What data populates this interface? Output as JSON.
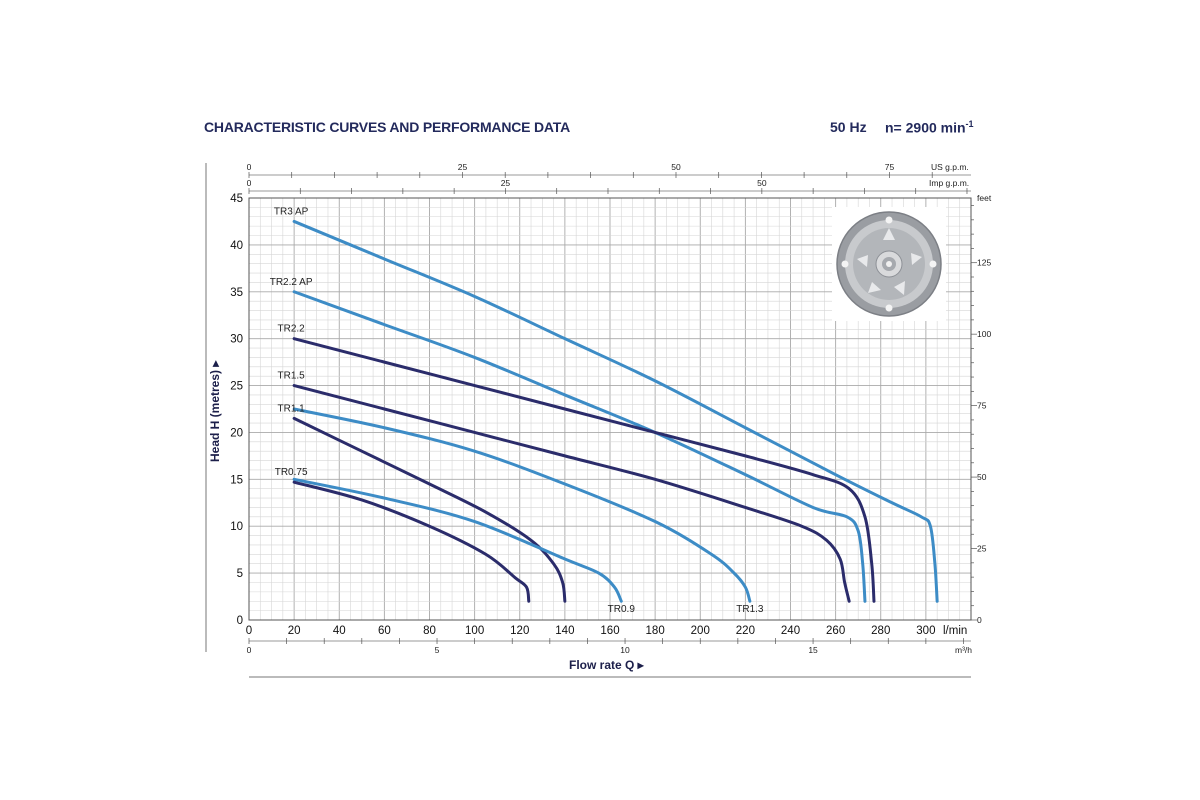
{
  "header": {
    "title": "CHARACTERISTIC CURVES AND PERFORMANCE DATA",
    "frequency": "50 Hz",
    "speed": "n= 2900 min",
    "speed_sup": "-1"
  },
  "colors": {
    "dark": "#2b2c6b",
    "light": "#3d8cc6",
    "grid": "#b9b9b9",
    "text": "#1c1f4a"
  },
  "chart_data": {
    "type": "line",
    "xlabel": "Flow rate Q ▸",
    "ylabel": "Head H (metres) ▸",
    "xlim": [
      0,
      320
    ],
    "ylim": [
      0,
      45
    ],
    "grid": true,
    "x_ticks": [
      "0",
      "20",
      "40",
      "60",
      "80",
      "100",
      "120",
      "140",
      "160",
      "180",
      "200",
      "220",
      "240",
      "260",
      "280",
      "300"
    ],
    "x_unit": "l/min",
    "y_ticks": [
      "0",
      "5",
      "10",
      "15",
      "20",
      "25",
      "30",
      "35",
      "40",
      "45"
    ],
    "top_axes": [
      {
        "unit": "US g.p.m.",
        "ticks": [
          "0",
          "25",
          "50",
          "75"
        ],
        "values": [
          0,
          25,
          50,
          75
        ]
      },
      {
        "unit": "Imp g.p.m.",
        "ticks": [
          "0",
          "25",
          "50"
        ],
        "values": [
          0,
          25,
          50
        ]
      }
    ],
    "bottom_axis_m3h": {
      "unit": "m³/h",
      "ticks": [
        "0",
        "5",
        "10",
        "15"
      ],
      "values": [
        0,
        5,
        10,
        15
      ]
    },
    "right_axis_feet": {
      "unit": "feet",
      "ticks": [
        "0",
        "25",
        "50",
        "75",
        "100",
        "125"
      ],
      "values": [
        0,
        25,
        50,
        75,
        100,
        125
      ]
    },
    "series": [
      {
        "name": "TR3 AP",
        "color": "light",
        "label_pos": "start",
        "x": [
          20,
          60,
          100,
          140,
          180,
          220,
          260,
          285,
          298,
          302,
          304,
          305
        ],
        "y": [
          42.5,
          38.5,
          34.5,
          30,
          25.5,
          20.5,
          15.5,
          12.5,
          11,
          10,
          6,
          2
        ]
      },
      {
        "name": "TR2.2 AP",
        "color": "light",
        "label_pos": "start",
        "x": [
          20,
          60,
          100,
          140,
          180,
          220,
          250,
          265,
          270,
          272,
          273
        ],
        "y": [
          35,
          31.5,
          28,
          24,
          20,
          15.5,
          12,
          11,
          9.5,
          6,
          2
        ]
      },
      {
        "name": "TR2.2",
        "color": "dark",
        "label_pos": "start",
        "x": [
          20,
          60,
          100,
          140,
          180,
          220,
          250,
          266,
          273,
          276,
          277
        ],
        "y": [
          30,
          27.5,
          25,
          22.5,
          20,
          17.5,
          15.5,
          14,
          11,
          6,
          2
        ]
      },
      {
        "name": "TR1.5",
        "color": "dark",
        "label_pos": "start",
        "x": [
          20,
          60,
          100,
          140,
          180,
          220,
          245,
          256,
          262,
          264,
          266
        ],
        "y": [
          25,
          22.5,
          20,
          17.5,
          15,
          12,
          10,
          8.5,
          6.5,
          4,
          2
        ]
      },
      {
        "name": "TR1.3",
        "color": "light",
        "label_pos": "end",
        "x": [
          20,
          60,
          100,
          140,
          180,
          205,
          215,
          220,
          222
        ],
        "y": [
          22.5,
          20.5,
          18,
          14.5,
          10.5,
          7,
          5,
          3.5,
          2
        ]
      },
      {
        "name": "TR1.1",
        "color": "dark",
        "label_pos": "start",
        "x": [
          20,
          50,
          80,
          105,
          125,
          135,
          139,
          140
        ],
        "y": [
          21.5,
          18,
          14.5,
          11.5,
          8.5,
          6,
          4,
          2
        ]
      },
      {
        "name": "TR0.9",
        "color": "light",
        "label_pos": "end",
        "x": [
          20,
          60,
          100,
          140,
          155,
          162,
          165
        ],
        "y": [
          15,
          13,
          10.5,
          6.5,
          5,
          3.5,
          2
        ]
      },
      {
        "name": "TR0.75",
        "color": "dark",
        "label_pos": "start",
        "x": [
          20,
          50,
          80,
          105,
          118,
          123,
          124
        ],
        "y": [
          14.7,
          12.8,
          10,
          7,
          4.5,
          3.5,
          2
        ]
      }
    ]
  }
}
